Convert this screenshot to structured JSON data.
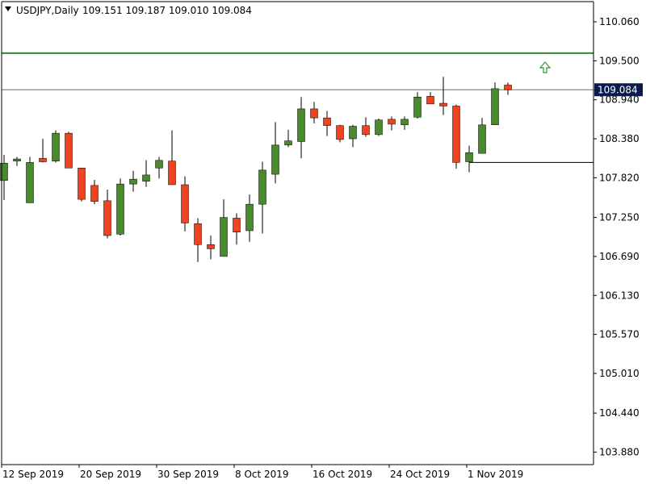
{
  "header": {
    "symbol_timeframe": "USDJPY,Daily",
    "ohlc": "109.151 109.187 109.010 109.084"
  },
  "current_price_label": "109.084",
  "colors": {
    "bull": "#4a8a2c",
    "bear": "#ee4422",
    "resistance_line": "#2f8a2f",
    "support_line": "#000000",
    "price_line": "#5a7a62",
    "price_tag_bg": "#0a1a4a",
    "arrow": "#2f9a2f"
  },
  "chart_data": {
    "type": "candlestick",
    "title": "USDJPY,Daily",
    "y_ticks": [
      "110.060",
      "109.500",
      "108.940",
      "108.380",
      "107.820",
      "107.250",
      "106.690",
      "106.130",
      "105.570",
      "105.010",
      "104.440",
      "103.880"
    ],
    "x_ticks": [
      "12 Sep 2019",
      "20 Sep 2019",
      "30 Sep 2019",
      "8 Oct 2019",
      "16 Oct 2019",
      "24 Oct 2019",
      "1 Nov 2019"
    ],
    "ylim": [
      103.7,
      110.35
    ],
    "candles": [
      {
        "o": 107.78,
        "h": 108.15,
        "l": 107.5,
        "c": 108.03
      },
      {
        "o": 108.06,
        "h": 108.12,
        "l": 107.99,
        "c": 108.09
      },
      {
        "o": 107.46,
        "h": 108.12,
        "l": 107.46,
        "c": 108.04
      },
      {
        "o": 108.1,
        "h": 108.38,
        "l": 108.04,
        "c": 108.05
      },
      {
        "o": 108.06,
        "h": 108.5,
        "l": 108.04,
        "c": 108.46
      },
      {
        "o": 108.46,
        "h": 108.48,
        "l": 107.96,
        "c": 107.96
      },
      {
        "o": 107.96,
        "h": 107.96,
        "l": 107.48,
        "c": 107.51
      },
      {
        "o": 107.71,
        "h": 107.79,
        "l": 107.44,
        "c": 107.48
      },
      {
        "o": 107.49,
        "h": 107.65,
        "l": 106.95,
        "c": 106.99
      },
      {
        "o": 107.01,
        "h": 107.81,
        "l": 106.99,
        "c": 107.73
      },
      {
        "o": 107.73,
        "h": 107.92,
        "l": 107.62,
        "c": 107.8
      },
      {
        "o": 107.77,
        "h": 108.07,
        "l": 107.69,
        "c": 107.86
      },
      {
        "o": 107.96,
        "h": 108.12,
        "l": 107.81,
        "c": 108.07
      },
      {
        "o": 108.06,
        "h": 108.5,
        "l": 107.76,
        "c": 107.72
      },
      {
        "o": 107.72,
        "h": 107.84,
        "l": 107.05,
        "c": 107.17
      },
      {
        "o": 107.16,
        "h": 107.24,
        "l": 106.61,
        "c": 106.86
      },
      {
        "o": 106.86,
        "h": 106.99,
        "l": 106.65,
        "c": 106.8
      },
      {
        "o": 106.69,
        "h": 107.51,
        "l": 106.69,
        "c": 107.25
      },
      {
        "o": 107.24,
        "h": 107.31,
        "l": 106.86,
        "c": 107.04
      },
      {
        "o": 107.06,
        "h": 107.58,
        "l": 106.9,
        "c": 107.44
      },
      {
        "o": 107.44,
        "h": 108.05,
        "l": 107.02,
        "c": 107.93
      },
      {
        "o": 107.87,
        "h": 108.62,
        "l": 107.74,
        "c": 108.29
      },
      {
        "o": 108.29,
        "h": 108.51,
        "l": 108.26,
        "c": 108.35
      },
      {
        "o": 108.34,
        "h": 108.98,
        "l": 108.1,
        "c": 108.81
      },
      {
        "o": 108.81,
        "h": 108.91,
        "l": 108.6,
        "c": 108.68
      },
      {
        "o": 108.68,
        "h": 108.78,
        "l": 108.42,
        "c": 108.57
      },
      {
        "o": 108.57,
        "h": 108.58,
        "l": 108.33,
        "c": 108.37
      },
      {
        "o": 108.38,
        "h": 108.58,
        "l": 108.26,
        "c": 108.56
      },
      {
        "o": 108.57,
        "h": 108.69,
        "l": 108.41,
        "c": 108.44
      },
      {
        "o": 108.44,
        "h": 108.67,
        "l": 108.42,
        "c": 108.65
      },
      {
        "o": 108.66,
        "h": 108.7,
        "l": 108.5,
        "c": 108.59
      },
      {
        "o": 108.58,
        "h": 108.7,
        "l": 108.51,
        "c": 108.66
      },
      {
        "o": 108.69,
        "h": 109.05,
        "l": 108.67,
        "c": 108.98
      },
      {
        "o": 108.99,
        "h": 109.05,
        "l": 108.88,
        "c": 108.88
      },
      {
        "o": 108.89,
        "h": 109.27,
        "l": 108.72,
        "c": 108.85
      },
      {
        "o": 108.85,
        "h": 108.87,
        "l": 107.95,
        "c": 108.04
      },
      {
        "o": 108.05,
        "h": 108.28,
        "l": 107.9,
        "c": 108.18
      },
      {
        "o": 108.17,
        "h": 108.68,
        "l": 108.17,
        "c": 108.58
      },
      {
        "o": 108.58,
        "h": 109.19,
        "l": 108.58,
        "c": 109.1
      },
      {
        "o": 109.151,
        "h": 109.187,
        "l": 109.01,
        "c": 109.084
      }
    ],
    "resistance_level": 109.61,
    "support_level": 108.04,
    "current_price": 109.084,
    "grid": false,
    "legend": "none"
  }
}
